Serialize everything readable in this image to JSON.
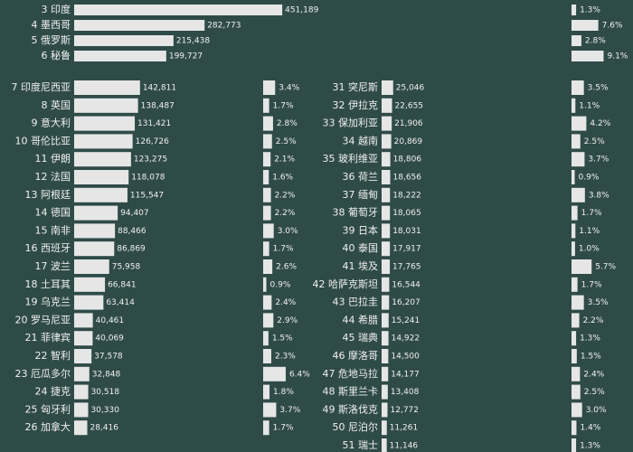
{
  "chart_data": [
    {
      "type": "bar",
      "color": "#e6e6e6",
      "ranks": [
        3,
        4,
        5,
        6
      ],
      "categories": [
        "印度",
        "墨西哥",
        "俄罗斯",
        "秘鲁"
      ],
      "values": [
        451189,
        282773,
        215438,
        199727
      ],
      "value_labels": [
        "451,189",
        "282,773",
        "215,438",
        "199,727"
      ],
      "shares": [
        1.3,
        7.6,
        2.8,
        9.1
      ],
      "share_labels": [
        "1.3%",
        "7.6%",
        "2.8%",
        "9.1%"
      ]
    },
    {
      "type": "bar",
      "color": "#e6e6e6",
      "ranks": [
        7,
        8,
        9,
        10,
        11,
        12,
        13,
        14,
        15,
        16,
        17,
        18,
        19,
        20,
        21,
        22,
        23,
        24,
        25,
        26
      ],
      "categories": [
        "印度尼西亚",
        "英国",
        "意大利",
        "哥伦比亚",
        "伊朗",
        "法国",
        "阿根廷",
        "德国",
        "南非",
        "西班牙",
        "波兰",
        "土耳其",
        "乌克兰",
        "罗马尼亚",
        "菲律宾",
        "智利",
        "厄瓜多尔",
        "捷克",
        "匈牙利",
        "加拿大"
      ],
      "values": [
        142811,
        138487,
        131421,
        126726,
        123275,
        118078,
        115547,
        94407,
        88466,
        86869,
        75958,
        66841,
        63414,
        40461,
        40069,
        37578,
        32848,
        30518,
        30330,
        28416
      ],
      "value_labels": [
        "142,811",
        "138,487",
        "131,421",
        "126,726",
        "123,275",
        "118,078",
        "115,547",
        "94,407",
        "88,466",
        "86,869",
        "75,958",
        "66,841",
        "63,414",
        "40,461",
        "40,069",
        "37,578",
        "32,848",
        "30,518",
        "30,330",
        "28,416"
      ],
      "shares": [
        3.4,
        1.7,
        2.8,
        2.5,
        2.1,
        1.6,
        2.2,
        2.2,
        3.0,
        1.7,
        2.6,
        0.9,
        2.4,
        2.9,
        1.5,
        2.3,
        6.4,
        1.8,
        3.7,
        1.7
      ],
      "share_labels": [
        "3.4%",
        "1.7%",
        "2.8%",
        "2.5%",
        "2.1%",
        "1.6%",
        "2.2%",
        "2.2%",
        "3.0%",
        "1.7%",
        "2.6%",
        "0.9%",
        "2.4%",
        "2.9%",
        "1.5%",
        "2.3%",
        "6.4%",
        "1.8%",
        "3.7%",
        "1.7%"
      ]
    },
    {
      "type": "bar",
      "color": "#e6e6e6",
      "ranks": [
        31,
        32,
        33,
        34,
        35,
        36,
        37,
        38,
        39,
        40,
        41,
        42,
        43,
        44,
        45,
        46,
        47,
        48,
        49,
        50,
        51
      ],
      "categories": [
        "突尼斯",
        "伊拉克",
        "保加利亚",
        "越南",
        "玻利维亚",
        "荷兰",
        "缅甸",
        "葡萄牙",
        "日本",
        "泰国",
        "埃及",
        "哈萨克斯坦",
        "巴拉圭",
        "希腊",
        "瑞典",
        "摩洛哥",
        "危地马拉",
        "斯里兰卡",
        "斯洛伐克",
        "尼泊尔",
        "瑞士"
      ],
      "values": [
        25046,
        22655,
        21906,
        20869,
        18806,
        18656,
        18222,
        18065,
        18031,
        17917,
        17765,
        16544,
        16207,
        15241,
        14922,
        14500,
        14177,
        13408,
        12772,
        11261,
        11146
      ],
      "value_labels": [
        "25,046",
        "22,655",
        "21,906",
        "20,869",
        "18,806",
        "18,656",
        "18,222",
        "18,065",
        "18,031",
        "17,917",
        "17,765",
        "16,544",
        "16,207",
        "15,241",
        "14,922",
        "14,500",
        "14,177",
        "13,408",
        "12,772",
        "11,261",
        "11,146"
      ],
      "shares": [
        3.5,
        1.1,
        4.2,
        2.5,
        3.7,
        0.9,
        3.8,
        1.7,
        1.1,
        1.0,
        5.7,
        1.7,
        3.5,
        2.2,
        1.3,
        1.5,
        2.4,
        2.5,
        3.0,
        1.4,
        1.3
      ],
      "share_labels": [
        "3.5%",
        "1.1%",
        "4.2%",
        "2.5%",
        "3.7%",
        "0.9%",
        "3.8%",
        "1.7%",
        "1.1%",
        "1.0%",
        "5.7%",
        "1.7%",
        "3.5%",
        "2.2%",
        "1.3%",
        "1.5%",
        "2.4%",
        "2.5%",
        "3.0%",
        "1.4%",
        "1.3%"
      ]
    }
  ]
}
